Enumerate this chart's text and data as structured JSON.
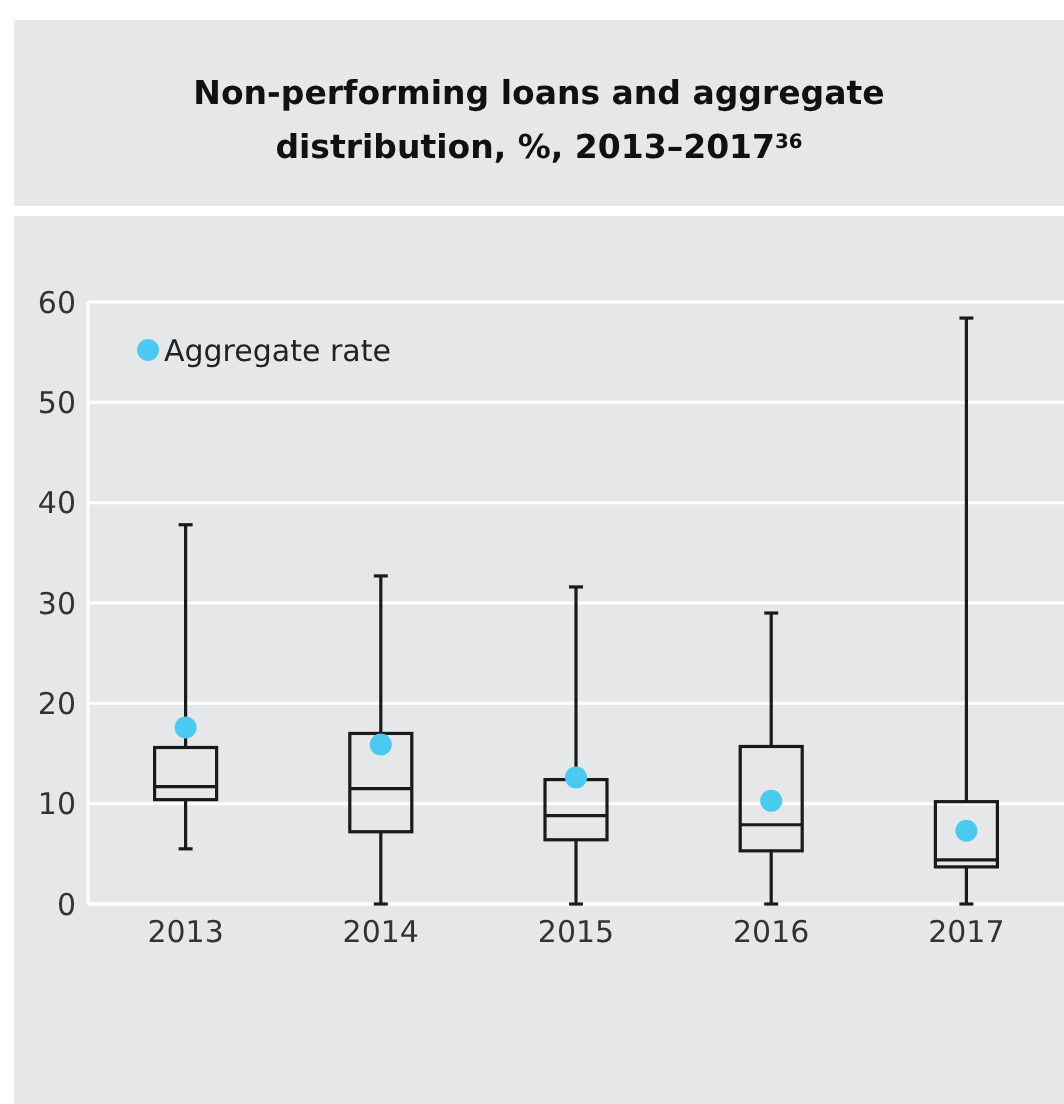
{
  "chart_data": {
    "type": "box",
    "title": "Non-performing loans and aggregate distribution, %, 2013–2017$^{36}$",
    "categories": [
      "2013",
      "2014",
      "2015",
      "2016",
      "2017"
    ],
    "boxes": [
      {
        "low": 5.5,
        "q1": 10.4,
        "median": 11.7,
        "q3": 15.6,
        "high": 37.8
      },
      {
        "low": 0,
        "q1": 7.2,
        "median": 11.5,
        "q3": 17.0,
        "high": 32.7
      },
      {
        "low": 0,
        "q1": 6.4,
        "median": 8.8,
        "q3": 12.4,
        "high": 31.6
      },
      {
        "low": 0,
        "q1": 5.3,
        "median": 7.9,
        "q3": 15.7,
        "high": 29.0
      },
      {
        "low": 0,
        "q1": 3.7,
        "median": 4.4,
        "q3": 10.2,
        "high": 58.4
      }
    ],
    "series": [
      {
        "type": "scatter",
        "name": "Aggregate rate",
        "color": "#4cc9f0",
        "values": [
          17.6,
          15.9,
          12.6,
          10.3,
          7.3
        ]
      }
    ],
    "ylim": [
      0,
      60
    ],
    "yticks": [
      0,
      10,
      20,
      30,
      40,
      50,
      60
    ],
    "grid": "y",
    "legend": "top left",
    "marker": "circle"
  }
}
